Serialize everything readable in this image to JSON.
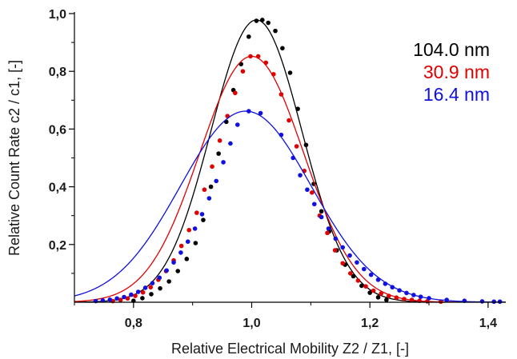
{
  "chart_data": {
    "type": "scatter",
    "xlabel": "Relative Electrical Mobility Z2 / Z1, [-]",
    "ylabel": "Relative Count Rate c2 / c1, [-]",
    "xlim": [
      0.7,
      1.43
    ],
    "ylim": [
      0.0,
      1.0
    ],
    "x_ticks": [
      "0,8",
      "1,0",
      "1,2",
      "1,4"
    ],
    "x_tick_values": [
      0.8,
      1.0,
      1.2,
      1.4
    ],
    "y_ticks": [
      "0,2",
      "0,4",
      "0,6",
      "0,8",
      "1,0"
    ],
    "y_tick_values": [
      0.2,
      0.4,
      0.6,
      0.8,
      1.0
    ],
    "grid": false,
    "legend_position": "top-right",
    "series": [
      {
        "name": "104.0 nm",
        "color": "#000000",
        "fit": {
          "center": 1.008,
          "amplitude": 0.978,
          "sigma": 0.077
        },
        "points": [
          [
            0.8,
            0.005
          ],
          [
            0.815,
            0.014
          ],
          [
            0.83,
            0.028
          ],
          [
            0.845,
            0.048
          ],
          [
            0.86,
            0.072
          ],
          [
            0.875,
            0.108
          ],
          [
            0.89,
            0.15
          ],
          [
            0.905,
            0.205
          ],
          [
            0.918,
            0.285
          ],
          [
            0.931,
            0.4
          ],
          [
            0.944,
            0.515
          ],
          [
            0.957,
            0.625
          ],
          [
            0.969,
            0.735
          ],
          [
            0.982,
            0.825
          ],
          [
            0.995,
            0.92
          ],
          [
            1.008,
            0.975
          ],
          [
            1.018,
            0.978
          ],
          [
            1.028,
            0.968
          ],
          [
            1.04,
            0.94
          ],
          [
            1.052,
            0.88
          ],
          [
            1.065,
            0.795
          ],
          [
            1.078,
            0.67
          ],
          [
            1.092,
            0.545
          ],
          [
            1.105,
            0.41
          ],
          [
            1.118,
            0.315
          ],
          [
            1.131,
            0.245
          ],
          [
            1.144,
            0.18
          ],
          [
            1.158,
            0.13
          ],
          [
            1.172,
            0.09
          ],
          [
            1.186,
            0.057
          ],
          [
            1.2,
            0.033
          ],
          [
            1.214,
            0.017
          ],
          [
            1.228,
            0.008
          ]
        ]
      },
      {
        "name": "30.9 nm",
        "color": "#e00000",
        "fit": {
          "center": 1.0,
          "amplitude": 0.852,
          "sigma": 0.088
        },
        "points": [
          [
            0.765,
            0.004
          ],
          [
            0.778,
            0.008
          ],
          [
            0.79,
            0.013
          ],
          [
            0.803,
            0.022
          ],
          [
            0.816,
            0.034
          ],
          [
            0.829,
            0.052
          ],
          [
            0.842,
            0.078
          ],
          [
            0.855,
            0.108
          ],
          [
            0.868,
            0.145
          ],
          [
            0.881,
            0.195
          ],
          [
            0.894,
            0.25
          ],
          [
            0.907,
            0.31
          ],
          [
            0.92,
            0.39
          ],
          [
            0.933,
            0.47
          ],
          [
            0.946,
            0.56
          ],
          [
            0.959,
            0.645
          ],
          [
            0.972,
            0.725
          ],
          [
            0.985,
            0.8
          ],
          [
            0.998,
            0.852
          ],
          [
            1.011,
            0.852
          ],
          [
            1.024,
            0.83
          ],
          [
            1.037,
            0.79
          ],
          [
            1.05,
            0.72
          ],
          [
            1.063,
            0.63
          ],
          [
            1.076,
            0.54
          ],
          [
            1.089,
            0.455
          ],
          [
            1.102,
            0.38
          ],
          [
            1.115,
            0.3
          ],
          [
            1.128,
            0.24
          ],
          [
            1.141,
            0.18
          ],
          [
            1.154,
            0.135
          ],
          [
            1.167,
            0.1
          ],
          [
            1.18,
            0.075
          ],
          [
            1.193,
            0.055
          ],
          [
            1.206,
            0.04
          ],
          [
            1.219,
            0.03
          ],
          [
            1.232,
            0.022
          ],
          [
            1.245,
            0.016
          ],
          [
            1.258,
            0.011
          ],
          [
            1.271,
            0.008
          ],
          [
            1.284,
            0.005
          ],
          [
            1.297,
            0.003
          ],
          [
            1.32,
            0.002
          ]
        ]
      },
      {
        "name": "16.4 nm",
        "color": "#1010e0",
        "fit": {
          "center": 0.99,
          "amplitude": 0.662,
          "sigma": 0.111
        },
        "points": [
          [
            0.736,
            0.004
          ],
          [
            0.748,
            0.006
          ],
          [
            0.76,
            0.009
          ],
          [
            0.772,
            0.013
          ],
          [
            0.784,
            0.018
          ],
          [
            0.796,
            0.026
          ],
          [
            0.808,
            0.036
          ],
          [
            0.82,
            0.05
          ],
          [
            0.832,
            0.066
          ],
          [
            0.844,
            0.085
          ],
          [
            0.856,
            0.11
          ],
          [
            0.868,
            0.138
          ],
          [
            0.88,
            0.172
          ],
          [
            0.892,
            0.21
          ],
          [
            0.904,
            0.255
          ],
          [
            0.916,
            0.305
          ],
          [
            0.928,
            0.36
          ],
          [
            0.94,
            0.42
          ],
          [
            0.952,
            0.485
          ],
          [
            0.964,
            0.55
          ],
          [
            0.976,
            0.615
          ],
          [
            0.995,
            0.662
          ],
          [
            1.015,
            0.655
          ],
          [
            1.05,
            0.58
          ],
          [
            1.07,
            0.5
          ],
          [
            1.082,
            0.44
          ],
          [
            1.094,
            0.39
          ],
          [
            1.106,
            0.34
          ],
          [
            1.118,
            0.295
          ],
          [
            1.13,
            0.255
          ],
          [
            1.142,
            0.22
          ],
          [
            1.154,
            0.19
          ],
          [
            1.166,
            0.162
          ],
          [
            1.178,
            0.138
          ],
          [
            1.19,
            0.115
          ],
          [
            1.202,
            0.095
          ],
          [
            1.214,
            0.078
          ],
          [
            1.226,
            0.064
          ],
          [
            1.238,
            0.052
          ],
          [
            1.25,
            0.041
          ],
          [
            1.262,
            0.032
          ],
          [
            1.274,
            0.025
          ],
          [
            1.286,
            0.019
          ],
          [
            1.3,
            0.014
          ],
          [
            1.33,
            0.008
          ],
          [
            1.36,
            0.005
          ],
          [
            1.39,
            0.003
          ],
          [
            1.41,
            0.002
          ],
          [
            1.42,
            0.002
          ]
        ]
      }
    ]
  }
}
